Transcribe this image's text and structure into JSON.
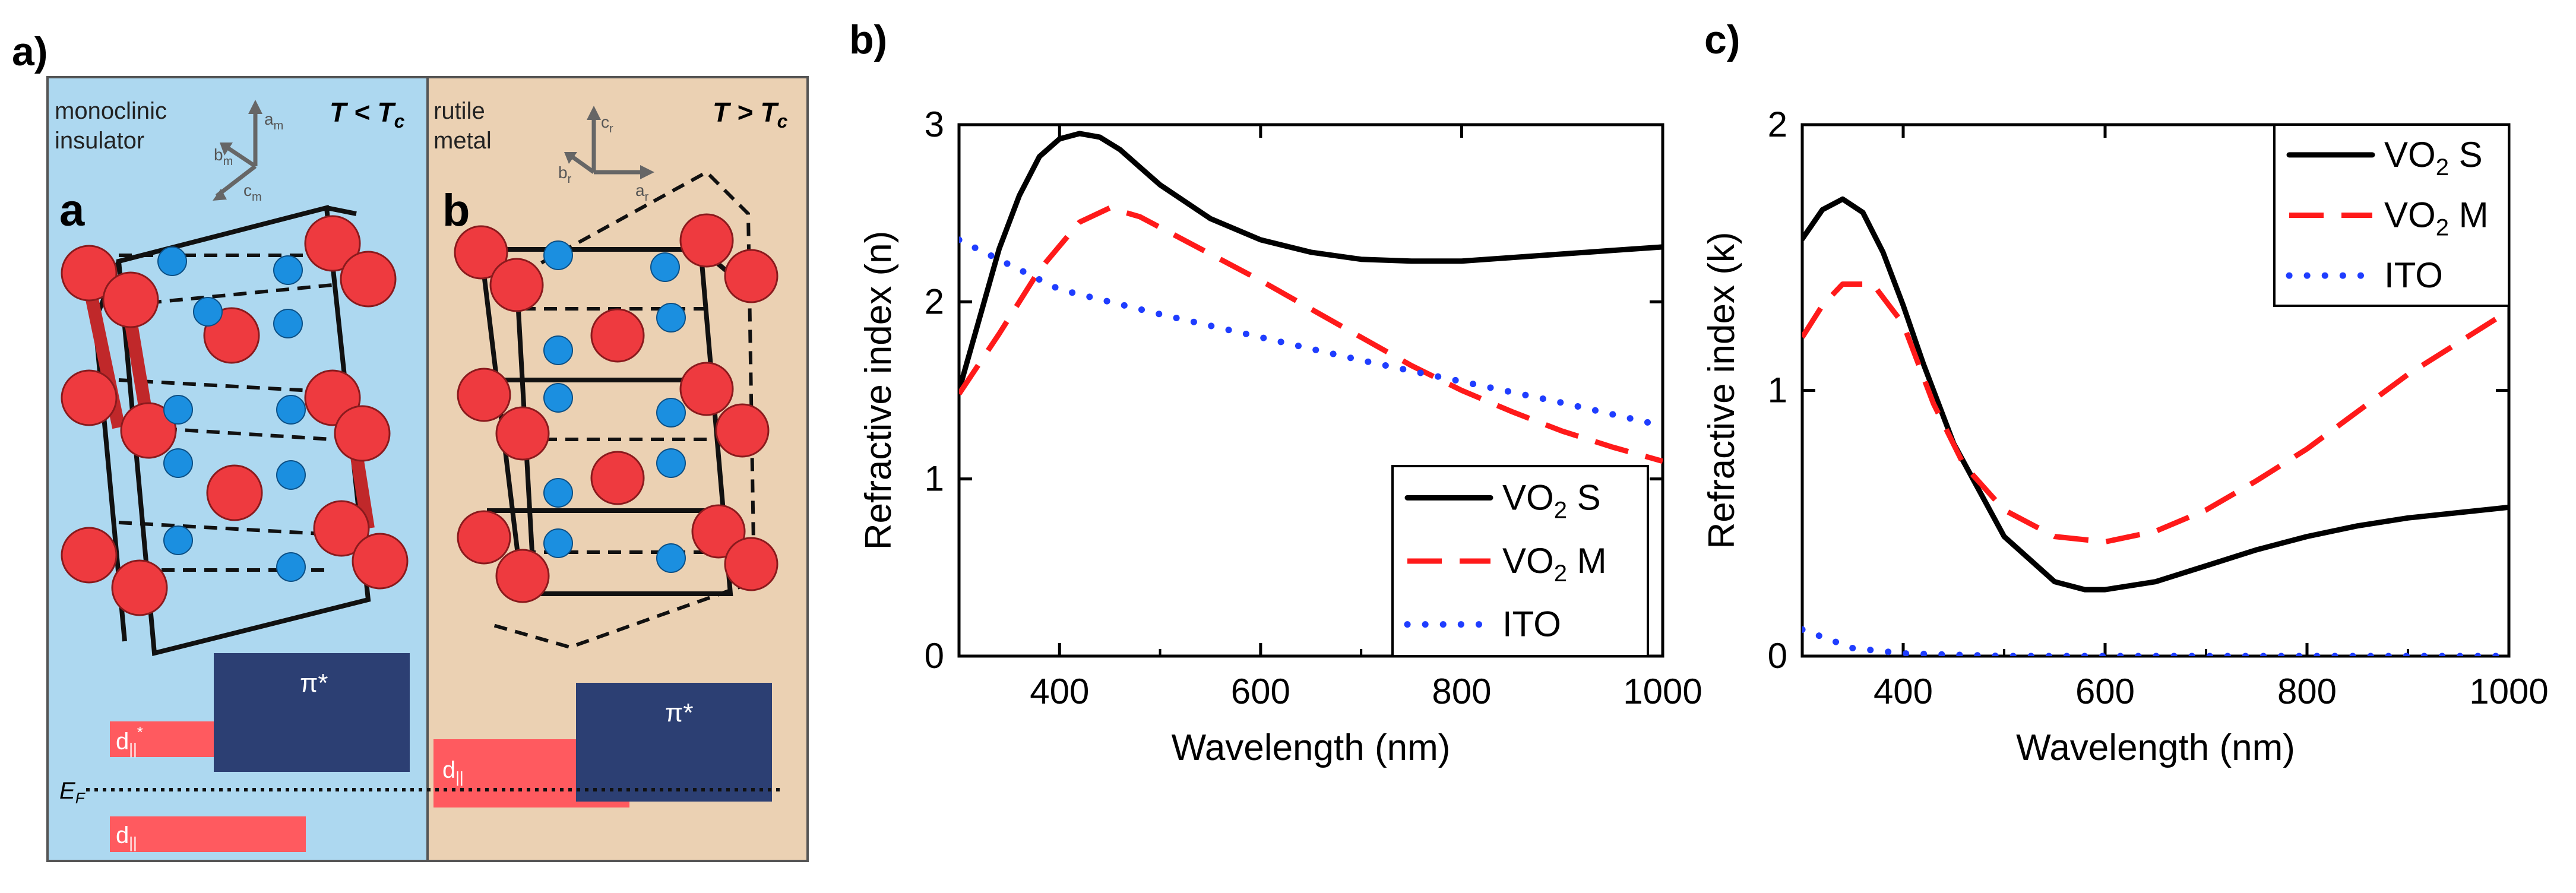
{
  "panel_labels": {
    "a": "a)",
    "b": "b)",
    "c": "c)"
  },
  "panel_a": {
    "left": {
      "title_line1": "monoclinic",
      "title_line2": "insulator",
      "temp_main": "T < T",
      "temp_sub": "c",
      "structure_label": "a",
      "axes": {
        "a": "a",
        "a_sub": "m",
        "b": "b",
        "b_sub": "m",
        "c": "c",
        "c_sub": "m"
      },
      "pi_label": "π*",
      "d_upper": "d",
      "d_upper_sub": "||",
      "d_upper_sup": "*",
      "d_lower": "d",
      "d_lower_sub": "||",
      "ef": "E",
      "ef_sub": "F",
      "colors": {
        "bg": "#add8f0",
        "band": "#ff5a5f",
        "pi": "#2c3f73"
      }
    },
    "right": {
      "title_line1": "rutile",
      "title_line2": "metal",
      "temp_main": "T > T",
      "temp_sub": "c",
      "structure_label": "b",
      "axes": {
        "a": "a",
        "a_sub": "r",
        "b": "b",
        "b_sub": "r",
        "c": "c",
        "c_sub": "r"
      },
      "pi_label": "π*",
      "d_label": "d",
      "d_sub": "||",
      "colors": {
        "bg": "#ebd1b3",
        "band": "#ff5a5f",
        "pi": "#2c3f73"
      }
    }
  },
  "chart_data": [
    {
      "id": "b",
      "type": "line",
      "title": "",
      "xlabel": "Wavelength (nm)",
      "ylabel": "Refractive index (n)",
      "xlim": [
        300,
        1000
      ],
      "ylim": [
        0,
        3
      ],
      "xticks": [
        400,
        600,
        800,
        1000
      ],
      "yticks": [
        0,
        1,
        2,
        3
      ],
      "legend_position": "bottom-right",
      "series": [
        {
          "name": "VO2 S",
          "base": "VO",
          "sub": "2",
          "suffix": " S",
          "color": "#000000",
          "style": "solid",
          "x": [
            300,
            320,
            340,
            360,
            380,
            400,
            420,
            440,
            460,
            480,
            500,
            550,
            600,
            650,
            700,
            750,
            800,
            850,
            900,
            950,
            1000
          ],
          "y": [
            1.5,
            1.9,
            2.3,
            2.6,
            2.82,
            2.92,
            2.95,
            2.93,
            2.86,
            2.76,
            2.66,
            2.47,
            2.35,
            2.28,
            2.24,
            2.23,
            2.23,
            2.25,
            2.27,
            2.29,
            2.31
          ]
        },
        {
          "name": "VO2 M",
          "base": "VO",
          "sub": "2",
          "suffix": " M",
          "color": "#ff1a1a",
          "style": "dashed",
          "x": [
            300,
            340,
            380,
            420,
            450,
            480,
            550,
            600,
            650,
            700,
            750,
            800,
            850,
            900,
            950,
            1000
          ],
          "y": [
            1.48,
            1.82,
            2.18,
            2.45,
            2.53,
            2.48,
            2.27,
            2.12,
            1.96,
            1.8,
            1.64,
            1.5,
            1.38,
            1.27,
            1.18,
            1.1
          ]
        },
        {
          "name": "ITO",
          "base": "ITO",
          "sub": "",
          "suffix": "",
          "color": "#1f3dff",
          "style": "dotted",
          "x": [
            300,
            400,
            500,
            600,
            700,
            800,
            900,
            1000
          ],
          "y": [
            2.35,
            2.07,
            1.93,
            1.8,
            1.67,
            1.55,
            1.43,
            1.3
          ]
        }
      ]
    },
    {
      "id": "c",
      "type": "line",
      "title": "",
      "xlabel": "Wavelength (nm)",
      "ylabel": "Refractive index (k)",
      "xlim": [
        300,
        1000
      ],
      "ylim": [
        0,
        2
      ],
      "xticks": [
        400,
        600,
        800,
        1000
      ],
      "yticks": [
        0,
        1,
        2
      ],
      "legend_position": "top-right",
      "series": [
        {
          "name": "VO2 S",
          "base": "VO",
          "sub": "2",
          "suffix": " S",
          "color": "#000000",
          "style": "solid",
          "x": [
            300,
            320,
            340,
            360,
            380,
            400,
            420,
            450,
            500,
            550,
            580,
            600,
            650,
            700,
            750,
            800,
            850,
            900,
            950,
            1000
          ],
          "y": [
            1.57,
            1.68,
            1.72,
            1.67,
            1.52,
            1.32,
            1.1,
            0.8,
            0.45,
            0.28,
            0.25,
            0.25,
            0.28,
            0.34,
            0.4,
            0.45,
            0.49,
            0.52,
            0.54,
            0.56
          ]
        },
        {
          "name": "VO2 M",
          "base": "VO",
          "sub": "2",
          "suffix": " M",
          "color": "#ff1a1a",
          "style": "dashed",
          "x": [
            300,
            320,
            340,
            370,
            400,
            430,
            460,
            500,
            550,
            600,
            650,
            700,
            750,
            800,
            850,
            900,
            950,
            1000
          ],
          "y": [
            1.2,
            1.32,
            1.4,
            1.4,
            1.25,
            0.95,
            0.72,
            0.55,
            0.45,
            0.43,
            0.47,
            0.55,
            0.66,
            0.78,
            0.92,
            1.06,
            1.18,
            1.3
          ]
        },
        {
          "name": "ITO",
          "base": "ITO",
          "sub": "",
          "suffix": "",
          "color": "#1f3dff",
          "style": "dotted",
          "x": [
            300,
            350,
            400,
            500,
            600,
            700,
            800,
            900,
            1000
          ],
          "y": [
            0.1,
            0.03,
            0.01,
            0.0,
            0.0,
            0.0,
            0.0,
            0.0,
            0.0
          ]
        }
      ]
    }
  ]
}
